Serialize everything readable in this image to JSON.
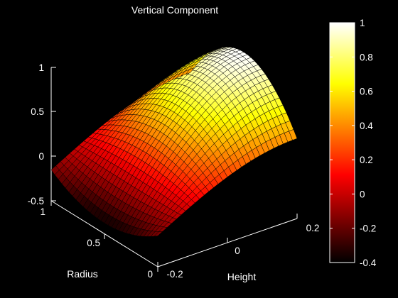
{
  "chart_data": {
    "type": "surface",
    "title": "Vertical Component",
    "xlabel": "Height",
    "ylabel": "Radius",
    "zlabel": "",
    "x_range": [
      -0.2,
      0.2
    ],
    "y_range": [
      0,
      1
    ],
    "z_range": [
      -0.5,
      1
    ],
    "x_ticks": [
      "-0.2",
      "0",
      "0.2"
    ],
    "y_ticks": [
      "0",
      "0.5",
      "1"
    ],
    "z_ticks": [
      "-0.5",
      "0",
      "0.5",
      "1"
    ],
    "colormap": "hot",
    "colorbar": {
      "range": [
        -0.4,
        1
      ],
      "ticks": [
        "-0.4",
        "-0.2",
        "0",
        "0.2",
        "0.4",
        "0.6",
        "0.8",
        "1"
      ],
      "position": "right"
    },
    "grid_size": [
      30,
      30
    ],
    "background": "#000000",
    "foreground": "#ffffff",
    "edge_color": "#000000"
  }
}
